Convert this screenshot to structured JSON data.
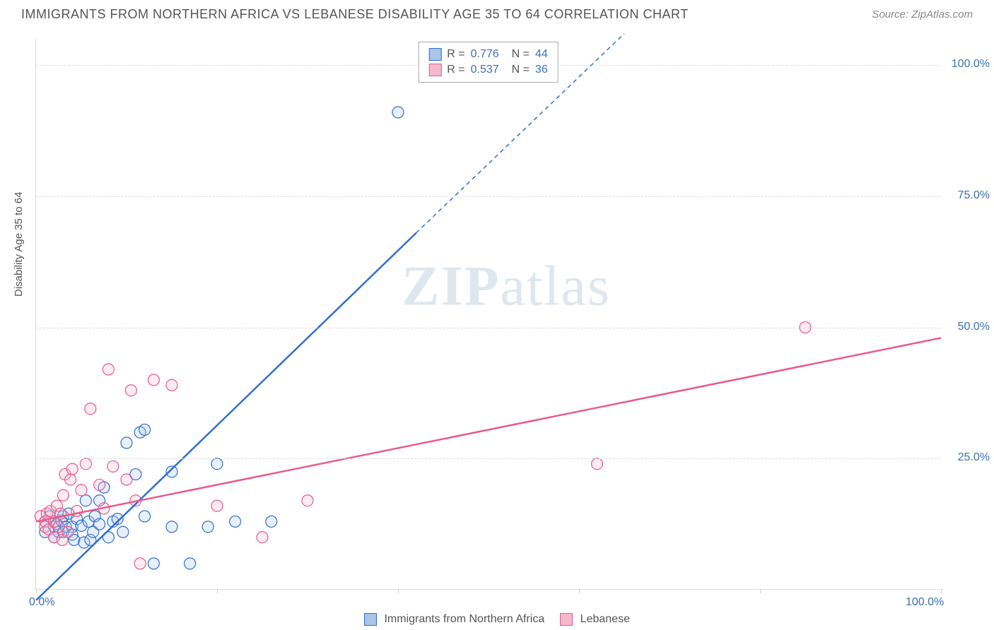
{
  "title": "IMMIGRANTS FROM NORTHERN AFRICA VS LEBANESE DISABILITY AGE 35 TO 64 CORRELATION CHART",
  "source": "Source: ZipAtlas.com",
  "ylabel": "Disability Age 35 to 64",
  "watermark_bold": "ZIP",
  "watermark_light": "atlas",
  "chart": {
    "type": "scatter",
    "xlim": [
      0,
      100
    ],
    "ylim": [
      0,
      105
    ],
    "grid_color": "#dddddd",
    "background_color": "#ffffff",
    "x_ticks": [
      0,
      20,
      40,
      60,
      80,
      100
    ],
    "x_tick_labels": [
      "0.0%",
      "",
      "",
      "",
      "",
      "100.0%"
    ],
    "y_ticks": [
      25,
      50,
      75,
      100
    ],
    "y_tick_labels": [
      "25.0%",
      "50.0%",
      "75.0%",
      "100.0%"
    ],
    "marker_radius": 8,
    "marker_stroke_width": 1.2,
    "marker_fill_opacity": 0.28,
    "line_width": 2.5,
    "series": [
      {
        "name": "Immigrants from Northern Africa",
        "color_stroke": "#2f6fce",
        "color_fill": "#a9c6e8",
        "R": "0.776",
        "N": "44",
        "trend": {
          "x1": 0,
          "y1": -2,
          "x2": 42,
          "y2": 68,
          "dash_from_x": 42,
          "x3": 65,
          "y3": 106
        },
        "points": [
          [
            1,
            11
          ],
          [
            1,
            13
          ],
          [
            1.5,
            14
          ],
          [
            2,
            12
          ],
          [
            2,
            10
          ],
          [
            2.3,
            12.5
          ],
          [
            2.5,
            11
          ],
          [
            2.8,
            13.2
          ],
          [
            3,
            14
          ],
          [
            3,
            11
          ],
          [
            3.3,
            12
          ],
          [
            3.6,
            14.5
          ],
          [
            4,
            12
          ],
          [
            4,
            10.5
          ],
          [
            4.2,
            9.5
          ],
          [
            4.5,
            13.5
          ],
          [
            5,
            12.2
          ],
          [
            5.3,
            9
          ],
          [
            5.5,
            17
          ],
          [
            5.8,
            13
          ],
          [
            6,
            9.5
          ],
          [
            6.3,
            11
          ],
          [
            6.5,
            14
          ],
          [
            7,
            17
          ],
          [
            7,
            12.5
          ],
          [
            7.5,
            19.5
          ],
          [
            8,
            10
          ],
          [
            8.5,
            13
          ],
          [
            9,
            13.5
          ],
          [
            9.6,
            11
          ],
          [
            10,
            28
          ],
          [
            11,
            22
          ],
          [
            11.5,
            30
          ],
          [
            12,
            14
          ],
          [
            12,
            30.5
          ],
          [
            13,
            5
          ],
          [
            15,
            22.5
          ],
          [
            15,
            12
          ],
          [
            17,
            5
          ],
          [
            19,
            12
          ],
          [
            20,
            24
          ],
          [
            22,
            13
          ],
          [
            26,
            13
          ],
          [
            40,
            91
          ]
        ]
      },
      {
        "name": "Lebanese",
        "color_stroke": "#e95a8b",
        "color_fill": "#f4b8cd",
        "R": "0.537",
        "N": "36",
        "trend": {
          "x1": 0,
          "y1": 13,
          "x2": 100,
          "y2": 48
        },
        "points": [
          [
            0.5,
            14
          ],
          [
            1,
            13
          ],
          [
            1,
            12
          ],
          [
            1.2,
            14.5
          ],
          [
            1.4,
            11.5
          ],
          [
            1.6,
            15
          ],
          [
            2,
            13
          ],
          [
            2,
            10
          ],
          [
            2.3,
            16
          ],
          [
            2.5,
            12
          ],
          [
            2.7,
            14.5
          ],
          [
            2.9,
            9.5
          ],
          [
            3,
            18
          ],
          [
            3.2,
            22
          ],
          [
            3.5,
            11
          ],
          [
            3.8,
            21
          ],
          [
            4,
            23
          ],
          [
            4.5,
            15
          ],
          [
            5,
            19
          ],
          [
            5.5,
            24
          ],
          [
            6,
            34.5
          ],
          [
            7,
            20
          ],
          [
            7.5,
            15.5
          ],
          [
            8,
            42
          ],
          [
            8.5,
            23.5
          ],
          [
            10,
            21
          ],
          [
            10.5,
            38
          ],
          [
            11,
            17
          ],
          [
            11.5,
            5
          ],
          [
            13,
            40
          ],
          [
            15,
            39
          ],
          [
            20,
            16
          ],
          [
            25,
            10
          ],
          [
            30,
            17
          ],
          [
            62,
            24
          ],
          [
            85,
            50
          ]
        ]
      }
    ]
  },
  "legend_top": {
    "r_label": "R =",
    "n_label": "N ="
  },
  "source_link_color": "#3b6fb5"
}
